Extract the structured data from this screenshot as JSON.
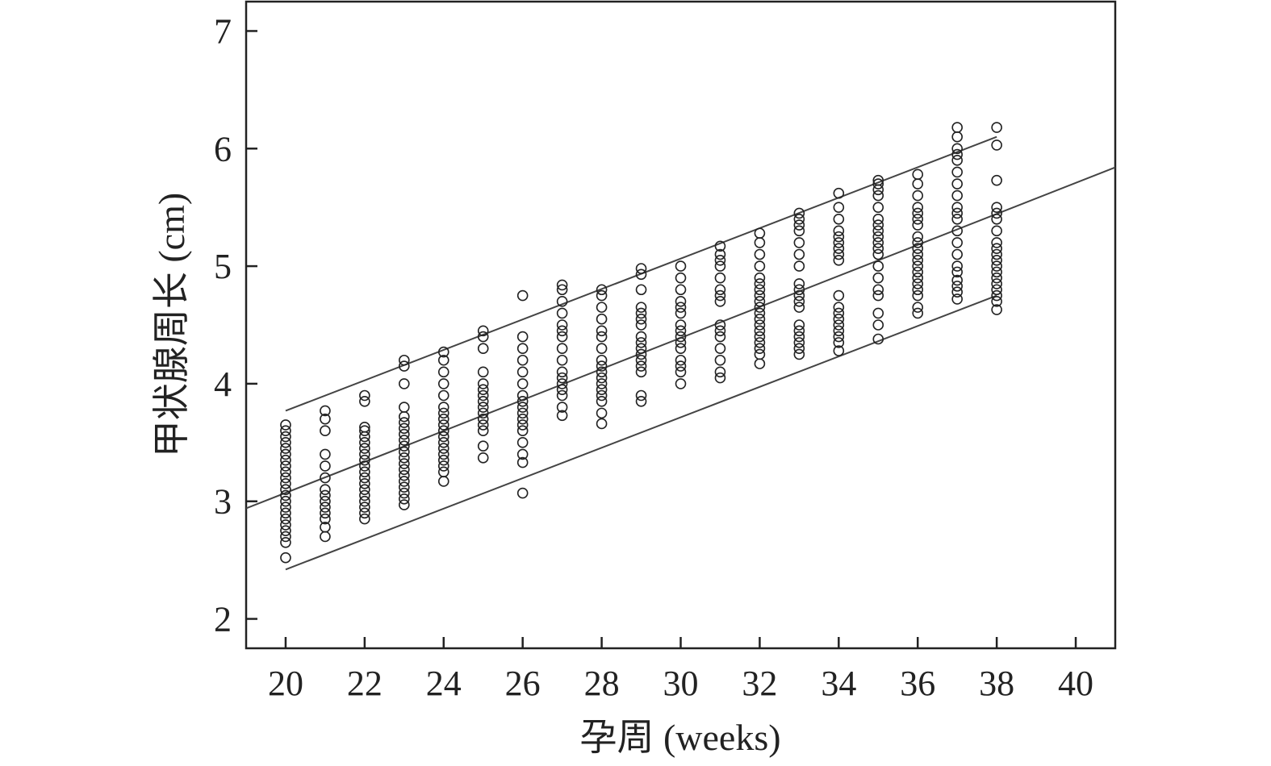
{
  "chart_data": {
    "type": "scatter",
    "title": "",
    "xlabel": "孕周 (weeks)",
    "ylabel": "甲状腺周长 (cm)",
    "xlim": [
      19,
      41
    ],
    "ylim": [
      1.75,
      7.25
    ],
    "xticks": [
      20,
      22,
      24,
      26,
      28,
      30,
      32,
      34,
      36,
      38,
      40
    ],
    "yticks": [
      2,
      3,
      4,
      5,
      6,
      7
    ],
    "grid": false,
    "legend": "none",
    "series": [
      {
        "name": "",
        "points": [
          {
            "x": 20,
            "y": [
              2.52,
              2.65,
              2.7,
              2.75,
              2.8,
              2.85,
              2.9,
              2.95,
              3.0,
              3.05,
              3.1,
              3.15,
              3.2,
              3.25,
              3.3,
              3.35,
              3.4,
              3.45,
              3.5,
              3.55,
              3.6,
              3.65
            ]
          },
          {
            "x": 21,
            "y": [
              2.7,
              2.78,
              2.85,
              2.9,
              2.95,
              3.0,
              3.05,
              3.1,
              3.2,
              3.3,
              3.4,
              3.6,
              3.7,
              3.77
            ]
          },
          {
            "x": 22,
            "y": [
              2.85,
              2.9,
              2.95,
              3.0,
              3.05,
              3.1,
              3.15,
              3.2,
              3.25,
              3.3,
              3.35,
              3.4,
              3.45,
              3.5,
              3.55,
              3.6,
              3.63,
              3.85,
              3.9
            ]
          },
          {
            "x": 23,
            "y": [
              2.97,
              3.02,
              3.07,
              3.12,
              3.17,
              3.22,
              3.27,
              3.32,
              3.37,
              3.42,
              3.47,
              3.52,
              3.57,
              3.62,
              3.67,
              3.72,
              3.8,
              4.0,
              4.15,
              4.2
            ]
          },
          {
            "x": 24,
            "y": [
              3.17,
              3.25,
              3.3,
              3.35,
              3.4,
              3.45,
              3.5,
              3.55,
              3.6,
              3.65,
              3.7,
              3.75,
              3.8,
              3.9,
              4.0,
              4.1,
              4.2,
              4.27
            ]
          },
          {
            "x": 25,
            "y": [
              3.37,
              3.47,
              3.6,
              3.65,
              3.7,
              3.75,
              3.8,
              3.85,
              3.9,
              3.95,
              4.0,
              4.1,
              4.3,
              4.4,
              4.45
            ]
          },
          {
            "x": 26,
            "y": [
              3.07,
              3.33,
              3.4,
              3.5,
              3.6,
              3.65,
              3.7,
              3.75,
              3.8,
              3.85,
              3.9,
              4.0,
              4.1,
              4.2,
              4.3,
              4.4,
              4.75
            ]
          },
          {
            "x": 27,
            "y": [
              3.73,
              3.8,
              3.9,
              3.95,
              4.0,
              4.05,
              4.1,
              4.2,
              4.3,
              4.4,
              4.45,
              4.5,
              4.6,
              4.7,
              4.8,
              4.84
            ]
          },
          {
            "x": 28,
            "y": [
              3.66,
              3.75,
              3.85,
              3.9,
              3.95,
              4.0,
              4.05,
              4.1,
              4.15,
              4.2,
              4.3,
              4.4,
              4.45,
              4.55,
              4.65,
              4.75,
              4.8
            ]
          },
          {
            "x": 29,
            "y": [
              3.85,
              3.9,
              4.1,
              4.15,
              4.2,
              4.25,
              4.3,
              4.35,
              4.4,
              4.5,
              4.55,
              4.6,
              4.65,
              4.8,
              4.93,
              4.98
            ]
          },
          {
            "x": 30,
            "y": [
              4.0,
              4.1,
              4.15,
              4.2,
              4.3,
              4.35,
              4.4,
              4.45,
              4.5,
              4.6,
              4.65,
              4.7,
              4.8,
              4.9,
              5.0
            ]
          },
          {
            "x": 31,
            "y": [
              4.05,
              4.1,
              4.2,
              4.3,
              4.4,
              4.45,
              4.5,
              4.7,
              4.75,
              4.8,
              4.9,
              5.0,
              5.05,
              5.1,
              5.17
            ]
          },
          {
            "x": 32,
            "y": [
              4.17,
              4.25,
              4.3,
              4.35,
              4.4,
              4.45,
              4.5,
              4.55,
              4.6,
              4.65,
              4.7,
              4.75,
              4.8,
              4.85,
              4.9,
              5.0,
              5.1,
              5.2,
              5.28
            ]
          },
          {
            "x": 33,
            "y": [
              4.25,
              4.3,
              4.35,
              4.4,
              4.45,
              4.5,
              4.65,
              4.7,
              4.75,
              4.8,
              4.85,
              5.0,
              5.1,
              5.2,
              5.3,
              5.35,
              5.4,
              5.45
            ]
          },
          {
            "x": 34,
            "y": [
              4.28,
              4.35,
              4.4,
              4.45,
              4.5,
              4.55,
              4.6,
              4.65,
              4.75,
              5.05,
              5.1,
              5.15,
              5.2,
              5.25,
              5.3,
              5.4,
              5.5,
              5.62
            ]
          },
          {
            "x": 35,
            "y": [
              4.38,
              4.5,
              4.6,
              4.75,
              4.8,
              4.9,
              5.0,
              5.1,
              5.15,
              5.2,
              5.25,
              5.3,
              5.35,
              5.4,
              5.5,
              5.6,
              5.65,
              5.7,
              5.73
            ]
          },
          {
            "x": 36,
            "y": [
              4.6,
              4.65,
              4.75,
              4.8,
              4.85,
              4.9,
              4.95,
              5.0,
              5.05,
              5.1,
              5.15,
              5.2,
              5.25,
              5.35,
              5.4,
              5.45,
              5.5,
              5.6,
              5.7,
              5.78
            ]
          },
          {
            "x": 37,
            "y": [
              4.72,
              4.78,
              4.83,
              4.88,
              4.95,
              5.0,
              5.1,
              5.2,
              5.3,
              5.4,
              5.45,
              5.5,
              5.6,
              5.7,
              5.8,
              5.9,
              5.95,
              6.0,
              6.1,
              6.18
            ]
          },
          {
            "x": 38,
            "y": [
              4.63,
              4.7,
              4.75,
              4.8,
              4.85,
              4.9,
              4.95,
              5.0,
              5.05,
              5.1,
              5.15,
              5.2,
              5.3,
              5.4,
              5.45,
              5.5,
              5.73,
              6.03,
              6.18
            ]
          }
        ]
      }
    ],
    "lines": [
      {
        "x": [
          19,
          41
        ],
        "y": [
          2.94,
          5.84
        ]
      },
      {
        "x": [
          20,
          38
        ],
        "y": [
          3.77,
          6.1
        ]
      },
      {
        "x": [
          20,
          38
        ],
        "y": [
          2.42,
          4.75
        ]
      }
    ]
  }
}
